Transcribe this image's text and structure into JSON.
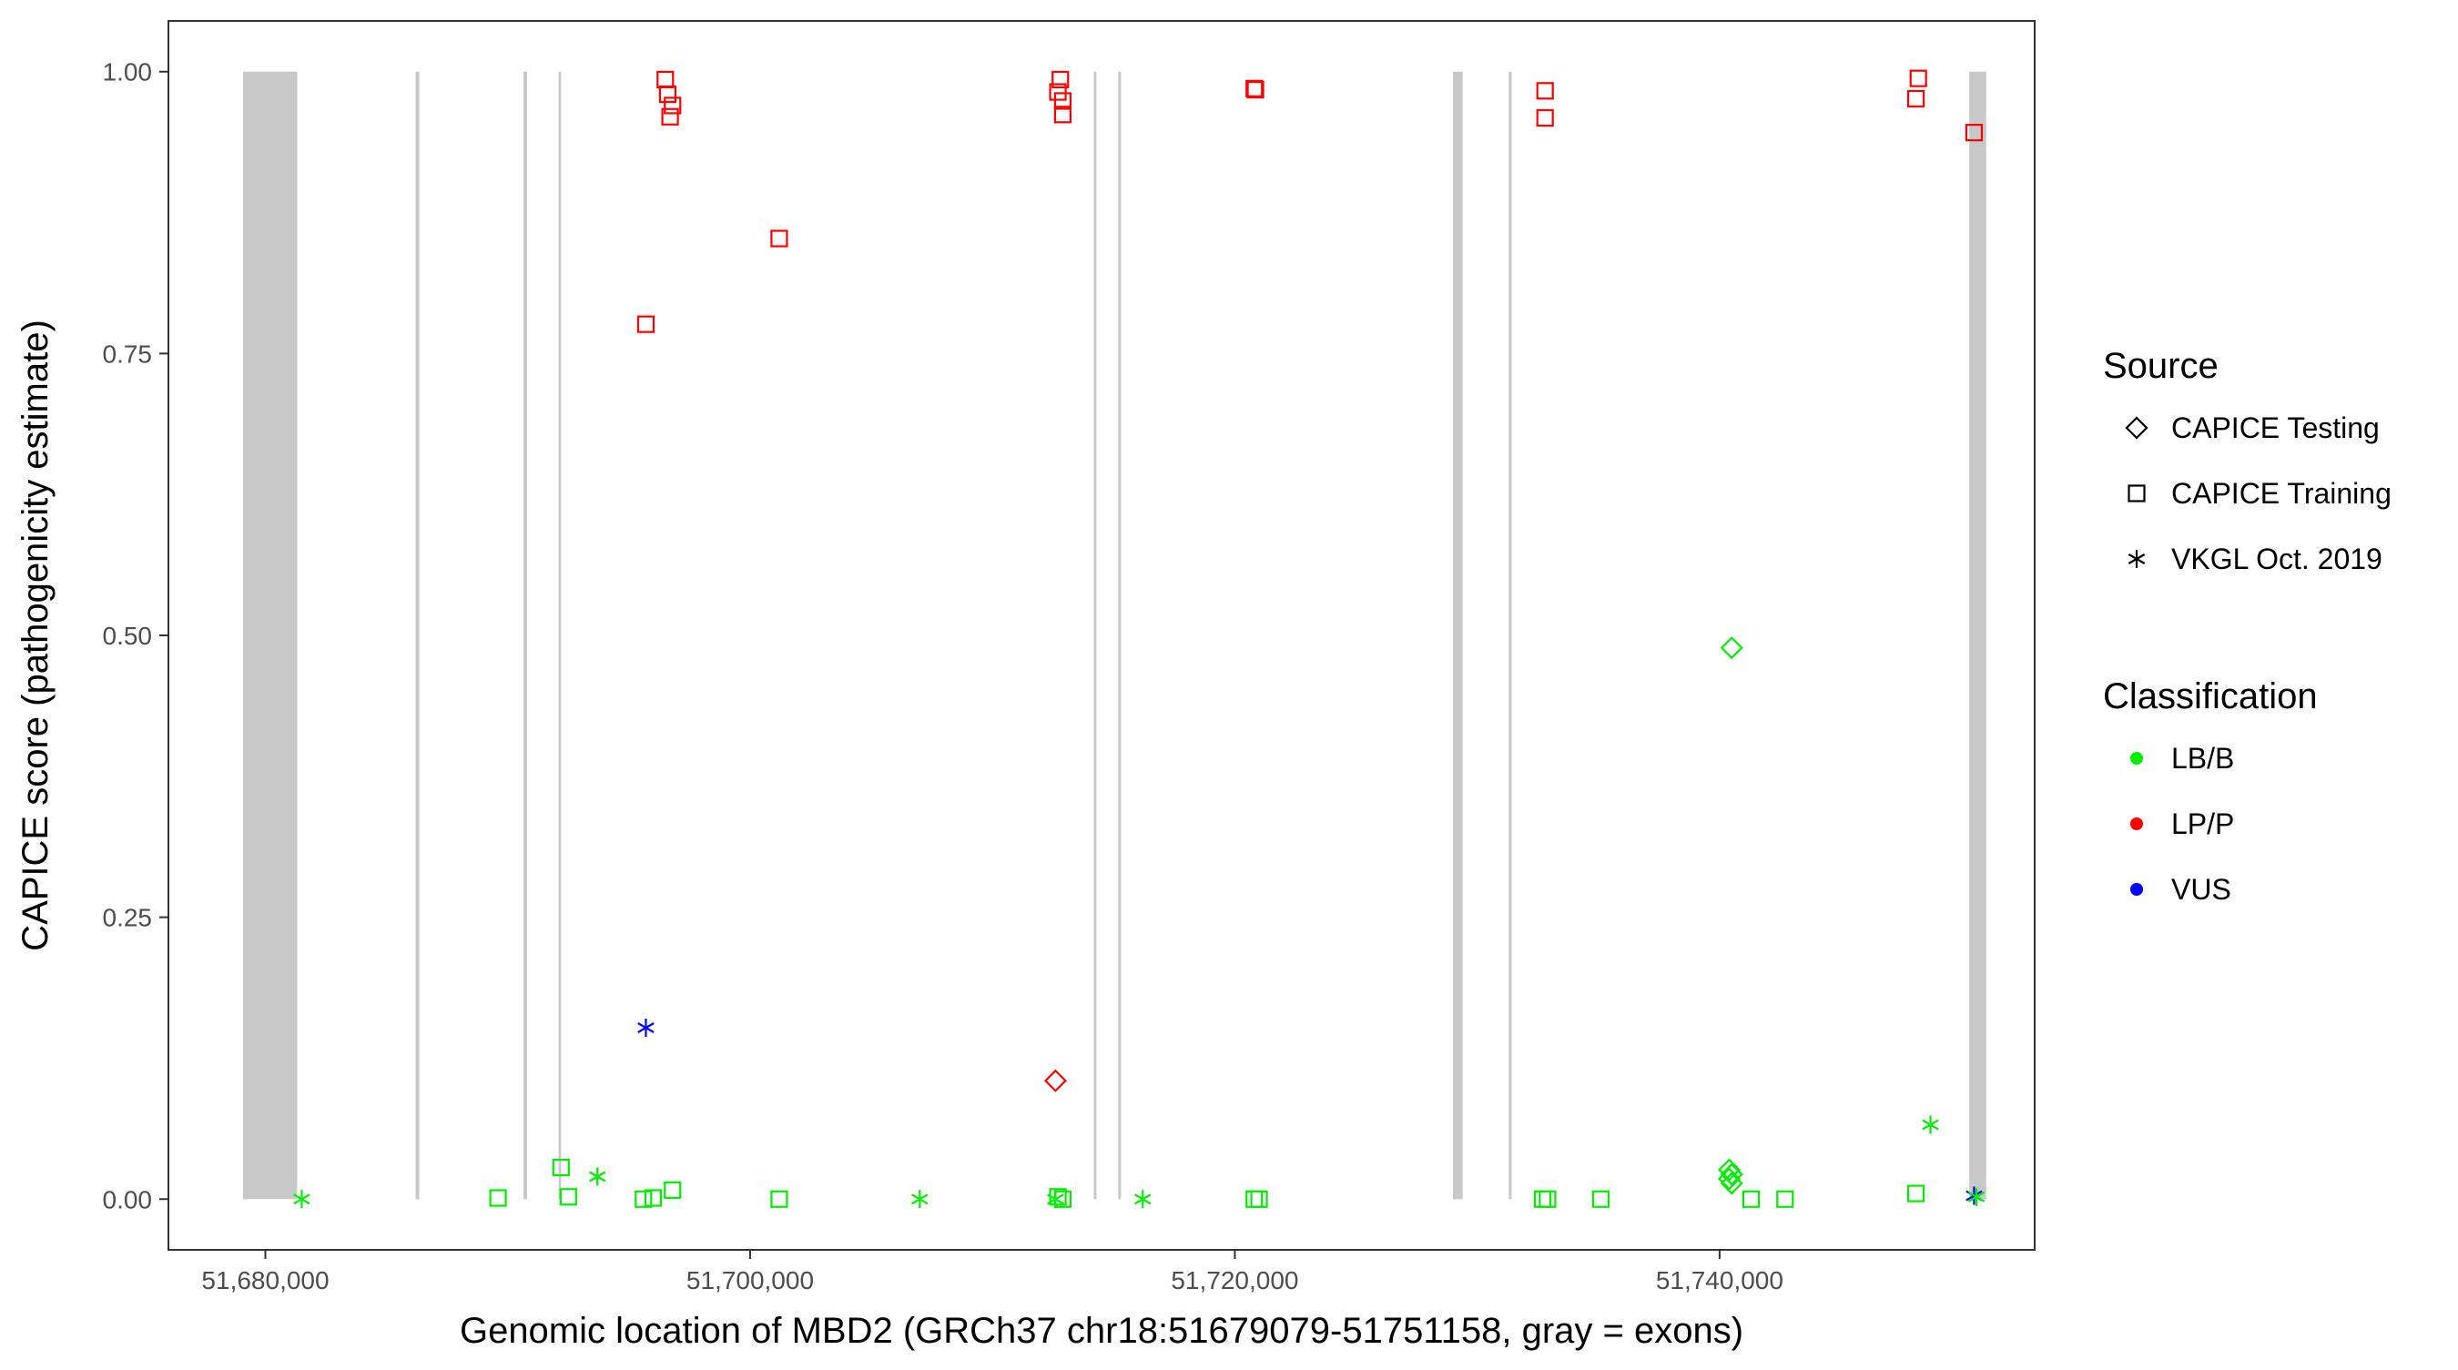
{
  "chart_data": {
    "type": "scatter",
    "title": "",
    "xlabel": "Genomic location of MBD2 (GRCh37 chr18:51679079-51751158, gray = exons)",
    "ylabel": "CAPICE score (pathogenicity estimate)",
    "xlim": [
      51676000,
      51753000
    ],
    "ylim": [
      -0.045,
      1.045
    ],
    "x_ticks": [
      51680000,
      51700000,
      51720000,
      51740000
    ],
    "x_tick_labels": [
      "51,680,000",
      "51,700,000",
      "51,720,000",
      "51,740,000"
    ],
    "y_ticks": [
      0,
      0.25,
      0.5,
      0.75,
      1
    ],
    "y_tick_labels": [
      "0.00",
      "0.25",
      "0.50",
      "0.75",
      "1.00"
    ],
    "grid": false,
    "legend_placement": "right",
    "colors": {
      "LB/B": "#00ee00",
      "LP/P": "#ff0000",
      "VUS": "#0000ff",
      "exon": "#c8c8c8"
    },
    "exons": [
      [
        51679079,
        51681310
      ],
      [
        51686200,
        51686350
      ],
      [
        51690650,
        51690800
      ],
      [
        51692100,
        51692200
      ],
      [
        51714180,
        51714290
      ],
      [
        51715190,
        51715300
      ],
      [
        51729000,
        51729400
      ],
      [
        51731300,
        51731420
      ],
      [
        51750300,
        51751000
      ]
    ],
    "legends": [
      {
        "title": "Source",
        "entries": [
          {
            "label": "CAPICE Testing",
            "shape": "diamond"
          },
          {
            "label": "CAPICE Training",
            "shape": "square"
          },
          {
            "label": "VKGL Oct. 2019",
            "shape": "asterisk"
          }
        ]
      },
      {
        "title": "Classification",
        "entries": [
          {
            "label": "LB/B",
            "shape": "dot"
          },
          {
            "label": "LP/P",
            "shape": "dot"
          },
          {
            "label": "VUS",
            "shape": "dot"
          }
        ]
      }
    ],
    "points": [
      {
        "x": 51696500,
        "y": 0.993,
        "source": "CAPICE Training",
        "class": "LP/P"
      },
      {
        "x": 51696600,
        "y": 0.98,
        "source": "CAPICE Training",
        "class": "LP/P"
      },
      {
        "x": 51696800,
        "y": 0.97,
        "source": "CAPICE Training",
        "class": "LP/P"
      },
      {
        "x": 51696700,
        "y": 0.96,
        "source": "CAPICE Training",
        "class": "LP/P"
      },
      {
        "x": 51695700,
        "y": 0.776,
        "source": "CAPICE Training",
        "class": "LP/P"
      },
      {
        "x": 51701200,
        "y": 0.852,
        "source": "CAPICE Training",
        "class": "LP/P"
      },
      {
        "x": 51712800,
        "y": 0.993,
        "source": "CAPICE Training",
        "class": "LP/P"
      },
      {
        "x": 51712700,
        "y": 0.982,
        "source": "CAPICE Training",
        "class": "LP/P"
      },
      {
        "x": 51712900,
        "y": 0.974,
        "source": "CAPICE Training",
        "class": "LP/P"
      },
      {
        "x": 51712900,
        "y": 0.962,
        "source": "CAPICE Training",
        "class": "LP/P"
      },
      {
        "x": 51720800,
        "y": 0.985,
        "source": "CAPICE Training",
        "class": "LP/P"
      },
      {
        "x": 51720850,
        "y": 0.984,
        "source": "CAPICE Training",
        "class": "LP/P"
      },
      {
        "x": 51732800,
        "y": 0.983,
        "source": "CAPICE Training",
        "class": "LP/P"
      },
      {
        "x": 51732800,
        "y": 0.959,
        "source": "CAPICE Training",
        "class": "LP/P"
      },
      {
        "x": 51748200,
        "y": 0.994,
        "source": "CAPICE Training",
        "class": "LP/P"
      },
      {
        "x": 51748100,
        "y": 0.976,
        "source": "CAPICE Training",
        "class": "LP/P"
      },
      {
        "x": 51750500,
        "y": 0.946,
        "source": "CAPICE Training",
        "class": "LP/P"
      },
      {
        "x": 51712600,
        "y": 0.105,
        "source": "CAPICE Testing",
        "class": "LP/P"
      },
      {
        "x": 51740500,
        "y": 0.489,
        "source": "CAPICE Testing",
        "class": "LB/B"
      },
      {
        "x": 51740400,
        "y": 0.026,
        "source": "CAPICE Testing",
        "class": "LB/B"
      },
      {
        "x": 51740500,
        "y": 0.022,
        "source": "CAPICE Testing",
        "class": "LB/B"
      },
      {
        "x": 51740400,
        "y": 0.018,
        "source": "CAPICE Testing",
        "class": "LB/B"
      },
      {
        "x": 51740500,
        "y": 0.014,
        "source": "CAPICE Testing",
        "class": "LB/B"
      },
      {
        "x": 51695700,
        "y": 0.152,
        "source": "VKGL Oct. 2019",
        "class": "VUS"
      },
      {
        "x": 51750500,
        "y": 0.003,
        "source": "VKGL Oct. 2019",
        "class": "VUS"
      },
      {
        "x": 51681500,
        "y": 0.0,
        "source": "VKGL Oct. 2019",
        "class": "LB/B"
      },
      {
        "x": 51693700,
        "y": 0.02,
        "source": "VKGL Oct. 2019",
        "class": "LB/B"
      },
      {
        "x": 51707000,
        "y": 0.0,
        "source": "VKGL Oct. 2019",
        "class": "LB/B"
      },
      {
        "x": 51712600,
        "y": 0.0,
        "source": "VKGL Oct. 2019",
        "class": "LB/B"
      },
      {
        "x": 51716200,
        "y": 0.0,
        "source": "VKGL Oct. 2019",
        "class": "LB/B"
      },
      {
        "x": 51748700,
        "y": 0.066,
        "source": "VKGL Oct. 2019",
        "class": "LB/B"
      },
      {
        "x": 51750600,
        "y": 0.002,
        "source": "VKGL Oct. 2019",
        "class": "LB/B"
      },
      {
        "x": 51689600,
        "y": 0.001,
        "source": "CAPICE Training",
        "class": "LB/B"
      },
      {
        "x": 51692200,
        "y": 0.028,
        "source": "CAPICE Training",
        "class": "LB/B"
      },
      {
        "x": 51692500,
        "y": 0.002,
        "source": "CAPICE Training",
        "class": "LB/B"
      },
      {
        "x": 51695600,
        "y": 0.0,
        "source": "CAPICE Training",
        "class": "LB/B"
      },
      {
        "x": 51696000,
        "y": 0.001,
        "source": "CAPICE Training",
        "class": "LB/B"
      },
      {
        "x": 51696800,
        "y": 0.008,
        "source": "CAPICE Training",
        "class": "LB/B"
      },
      {
        "x": 51701200,
        "y": 0.0,
        "source": "CAPICE Training",
        "class": "LB/B"
      },
      {
        "x": 51712700,
        "y": 0.002,
        "source": "CAPICE Training",
        "class": "LB/B"
      },
      {
        "x": 51712900,
        "y": 0.0,
        "source": "CAPICE Training",
        "class": "LB/B"
      },
      {
        "x": 51720800,
        "y": 0.0,
        "source": "CAPICE Training",
        "class": "LB/B"
      },
      {
        "x": 51721000,
        "y": 0.0,
        "source": "CAPICE Training",
        "class": "LB/B"
      },
      {
        "x": 51732700,
        "y": 0.0,
        "source": "CAPICE Training",
        "class": "LB/B"
      },
      {
        "x": 51732900,
        "y": 0.0,
        "source": "CAPICE Training",
        "class": "LB/B"
      },
      {
        "x": 51735100,
        "y": 0.0,
        "source": "CAPICE Training",
        "class": "LB/B"
      },
      {
        "x": 51741300,
        "y": 0.0,
        "source": "CAPICE Training",
        "class": "LB/B"
      },
      {
        "x": 51742700,
        "y": 0.0,
        "source": "CAPICE Training",
        "class": "LB/B"
      },
      {
        "x": 51748100,
        "y": 0.005,
        "source": "CAPICE Training",
        "class": "LB/B"
      }
    ]
  }
}
